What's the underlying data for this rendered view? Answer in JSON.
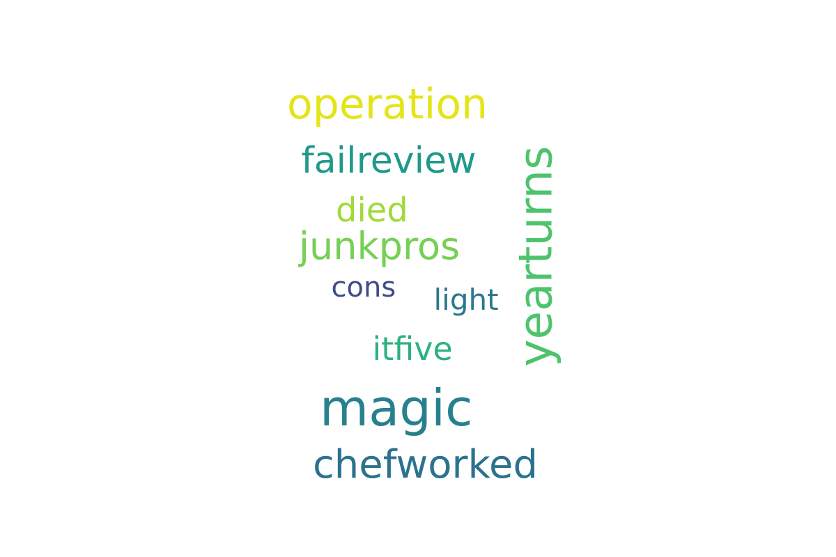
{
  "words": [
    {
      "text": "yearturns",
      "color": "#4ec36b",
      "vertical": true
    },
    {
      "text": "operation",
      "color": "#e5e419",
      "vertical": false
    },
    {
      "text": "failreview",
      "color": "#1f9a8a",
      "vertical": false
    },
    {
      "text": "died",
      "color": "#a0da39",
      "vertical": false
    },
    {
      "text": "junkpros",
      "color": "#75d054",
      "vertical": false
    },
    {
      "text": "cons",
      "color": "#3e4a89",
      "vertical": false
    },
    {
      "text": "light",
      "color": "#2a788e",
      "vertical": false
    },
    {
      "text": "itfive",
      "color": "#2cb17e",
      "vertical": false
    },
    {
      "text": "magic",
      "color": "#27808e",
      "vertical": false
    },
    {
      "text": "chefworked",
      "color": "#2c728e",
      "vertical": false
    }
  ]
}
